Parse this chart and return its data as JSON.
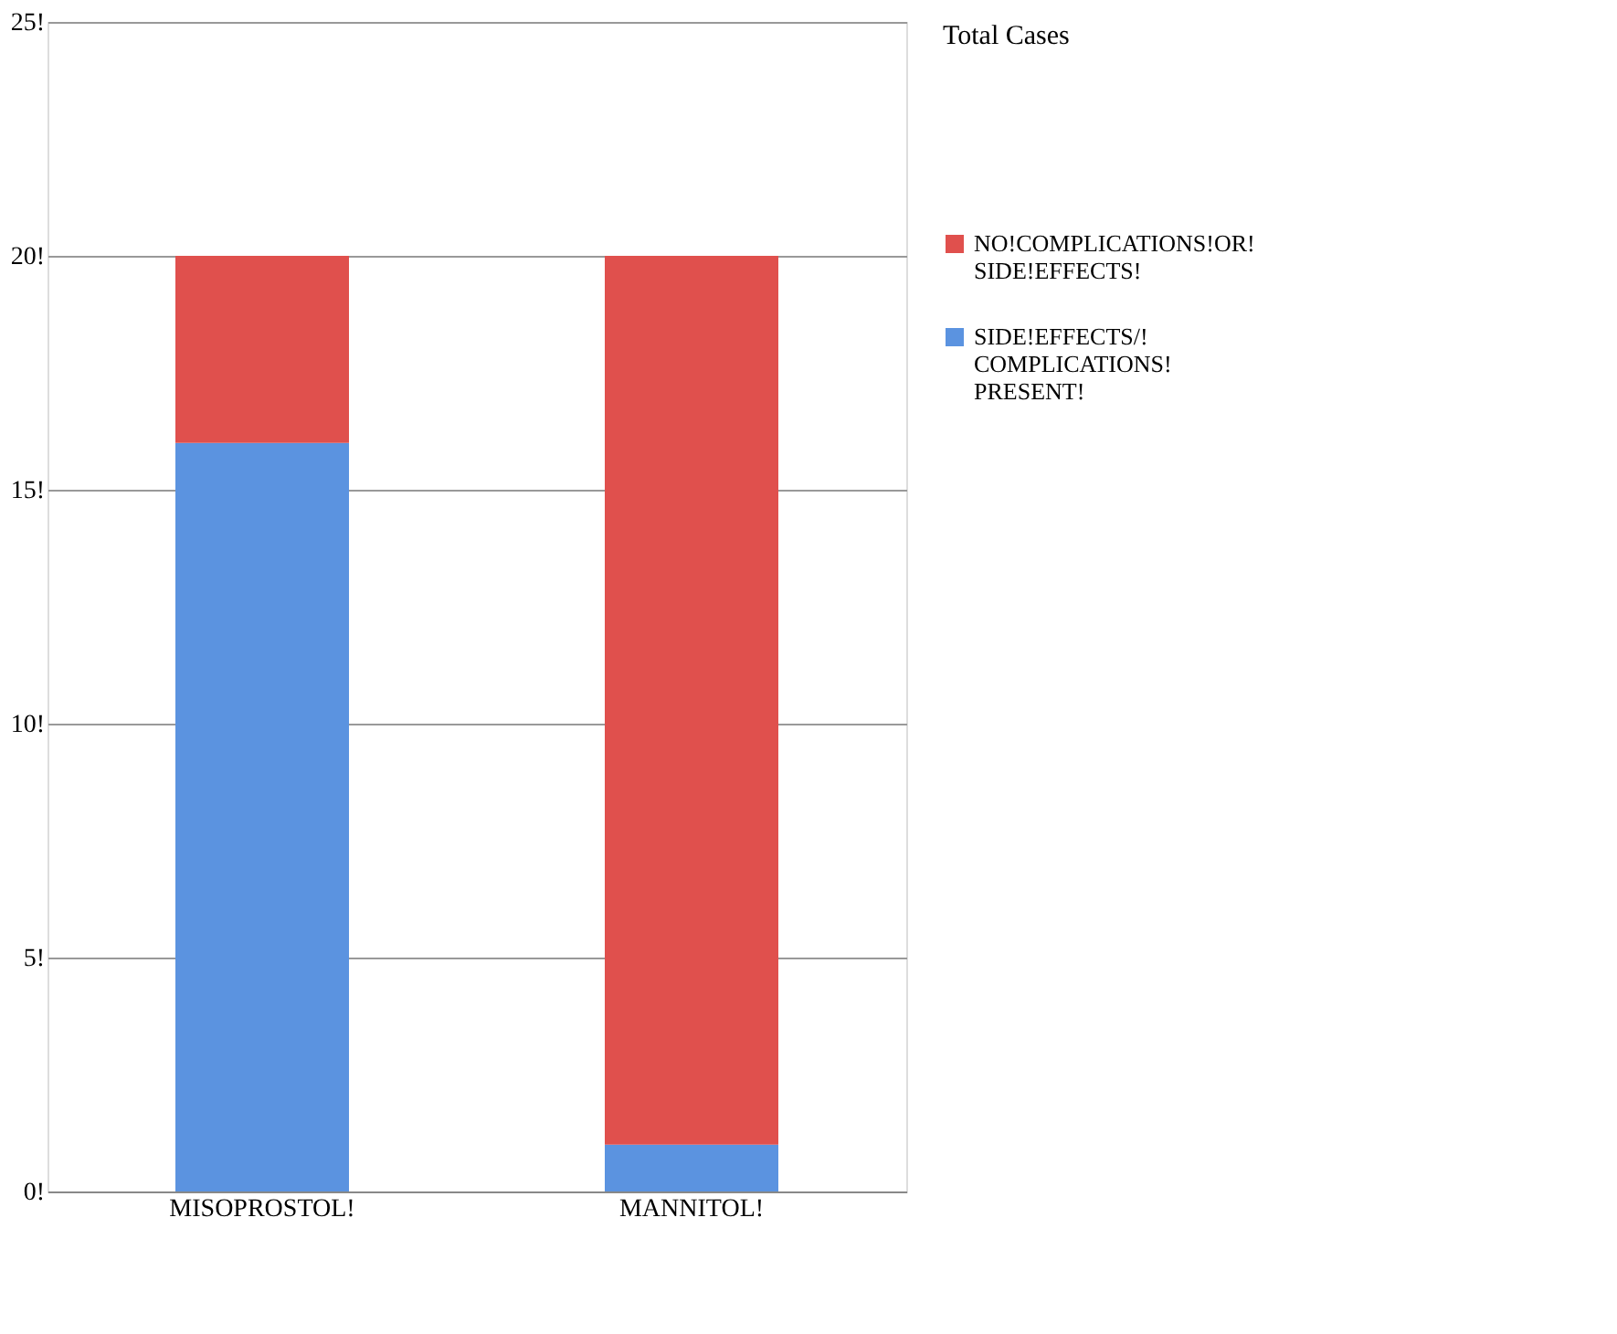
{
  "chart_data": {
    "type": "bar",
    "stacked": true,
    "legend_title": "Total Cases",
    "legend": "right",
    "categories": [
      "MISOPROSTOL!",
      "MANNITOL!"
    ],
    "series": [
      {
        "name": "SIDE!EFFECTS/! COMPLICATIONS! PRESENT!",
        "color": "#5b93e0",
        "values": [
          16,
          1
        ]
      },
      {
        "name": "NO!COMPLICATIONS!OR! SIDE!EFFECTS!",
        "color": "#e0504d",
        "values": [
          4,
          19
        ]
      }
    ],
    "ylim": [
      0,
      25
    ],
    "yticks": [
      {
        "value": 0,
        "label": "0!"
      },
      {
        "value": 5,
        "label": "5!"
      },
      {
        "value": 10,
        "label": "10!"
      },
      {
        "value": 15,
        "label": "15!"
      },
      {
        "value": 20,
        "label": "20!"
      },
      {
        "value": 25,
        "label": "25!"
      }
    ],
    "grid": "y"
  }
}
